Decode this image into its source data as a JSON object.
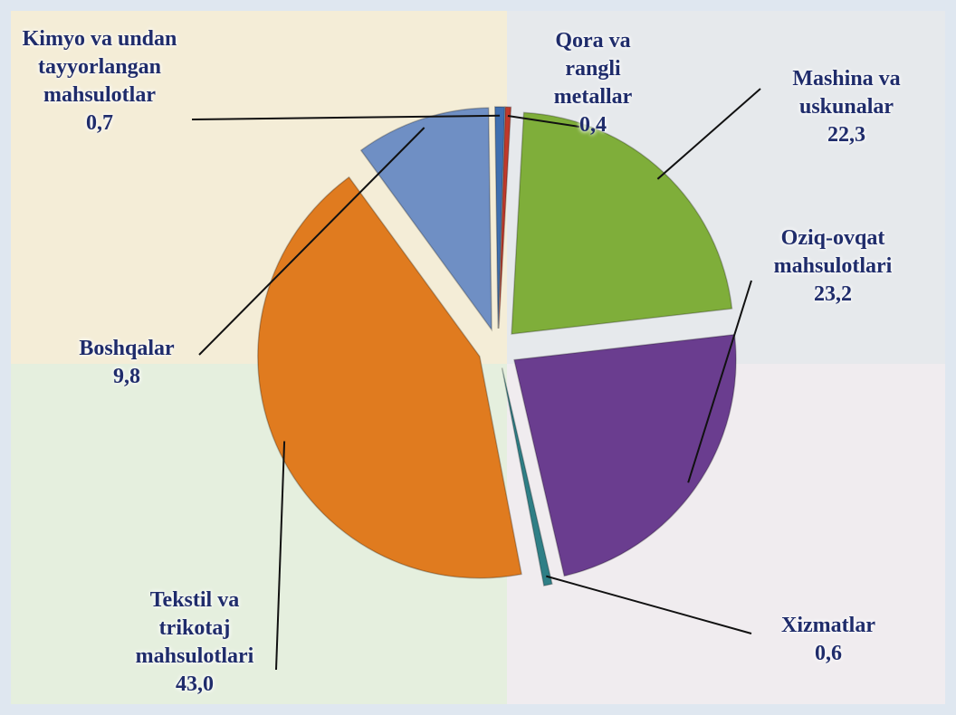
{
  "chart_data": {
    "type": "pie",
    "categories": [
      "Qora va rangli metallar",
      "Mashina va uskunalar",
      "Oziq-ovqat mahsulotlari",
      "Xizmatlar",
      "Tekstil va trikotaj mahsulotlari",
      "Boshqalar",
      "Kimyo va undan tayyorlangan mahsulotlar"
    ],
    "values": [
      0.4,
      22.3,
      23.2,
      0.6,
      43.0,
      9.8,
      0.7
    ],
    "value_labels": [
      "0,4",
      "22,3",
      "23,2",
      "0,6",
      "43,0",
      "9,8",
      "0,7"
    ],
    "colors": [
      "#c0392b",
      "#7fae3a",
      "#6a3d8f",
      "#2f7f86",
      "#e07b1f",
      "#6f8fc4",
      "#3f6fb0"
    ]
  }
}
